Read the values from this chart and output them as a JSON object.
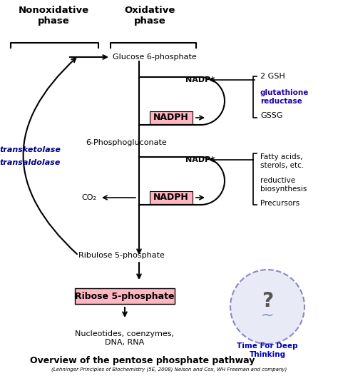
{
  "title": "Overview of the pentose phosphate pathway",
  "subtitle": "(Lehninger Principles of Biochemistry (5E, 2008) Nelson and Cox, WH Freeman and company)",
  "bg_color": "#ffffff",
  "pink_bg": "#ffb6c1",
  "nonoxidative_label": "Nonoxidative\nphase",
  "oxidative_label": "Oxidative\nphase",
  "glucose6p": "Glucose 6-phosphate",
  "nadp_plus_1": "NADP⁺",
  "nadph_1": "NADPH",
  "six_phosphogluconate": "6-Phosphogluconate",
  "nadp_plus_2": "NADP⁺",
  "nadph_2": "NADPH",
  "co2": "CO₂",
  "ribulose5p": "Ribulose 5-phosphate",
  "ribose5p": "Ribose 5-phosphate",
  "nucleotides": "Nucleotides, coenzymes,\nDNA, RNA",
  "transketolase": "transketolase",
  "transaldolase": "transaldolase",
  "two_gsh": "2 GSH",
  "glutathione_reductase": "glutathione\nreductase",
  "gssg": "GSSG",
  "fatty_acids": "Fatty acids,\nsterols, etc.",
  "reductive_biosynthesis": "reductive\nbiosynthesis",
  "precursors": "Precursors",
  "time_for_deep": "Time For Deep\nThinking"
}
